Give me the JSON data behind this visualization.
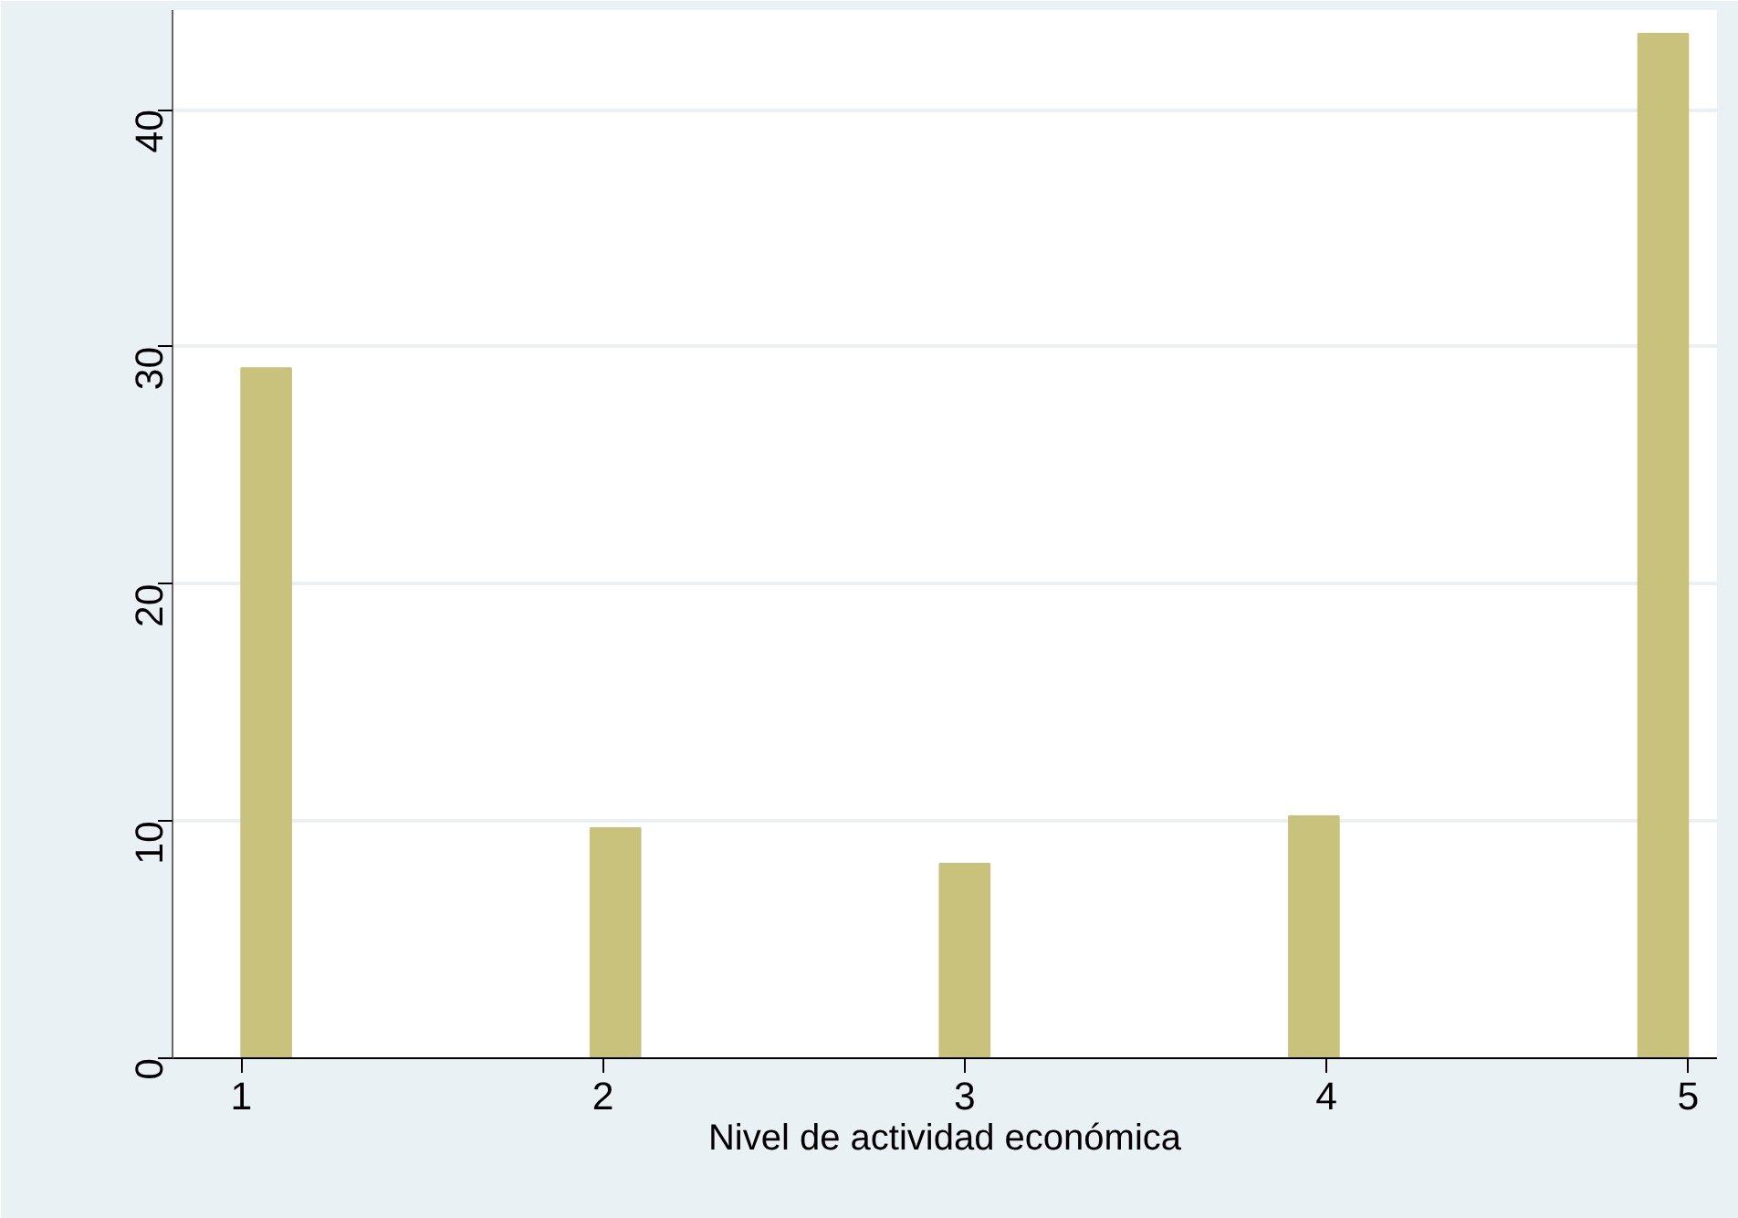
{
  "chart_data": {
    "type": "histogram",
    "xlabel": "Nivel de actividad económica",
    "bins": [
      1.0,
      1.1379,
      1.2759,
      1.4138,
      1.5517,
      1.6897,
      1.8276,
      1.9655,
      2.1034,
      2.2414,
      2.3793,
      2.5172,
      2.6552,
      2.7931,
      2.931,
      3.069,
      3.2069,
      3.3448,
      3.4828,
      3.6207,
      3.7586,
      3.8966,
      4.0345,
      4.1724,
      4.3103,
      4.4483,
      4.5862,
      4.7241,
      4.8621,
      5.0
    ],
    "values": [
      29.1,
      0,
      0,
      0,
      0,
      0,
      0,
      9.7,
      0,
      0,
      0,
      0,
      0,
      0,
      8.2,
      0,
      0,
      0,
      0,
      0,
      0,
      10.2,
      0,
      0,
      0,
      0,
      0,
      0,
      43.2
    ],
    "color": "#c9c27d",
    "xlim": [
      0.81,
      5.08
    ],
    "ylim": [
      0,
      44.2
    ],
    "xticks": [
      1,
      2,
      3,
      4,
      5
    ],
    "yticks": [
      0,
      10,
      20,
      30,
      40
    ],
    "grid": "y"
  }
}
